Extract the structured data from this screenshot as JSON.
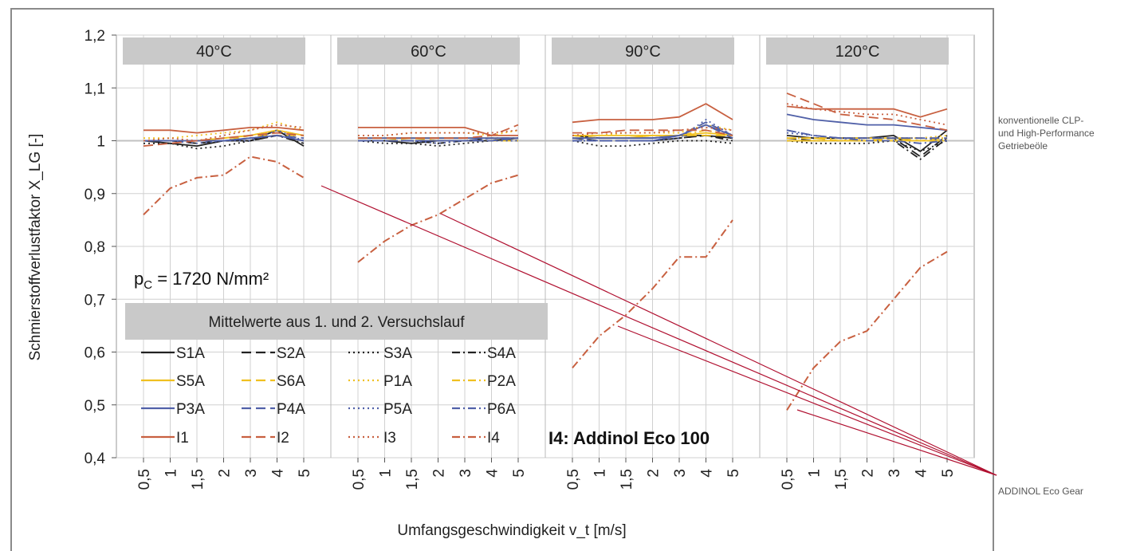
{
  "annotations": {
    "top": [
      "konventionelle CLP-",
      "und High-Performance",
      "Getriebeöle"
    ],
    "bottom": "ADDINOL Eco Gear"
  },
  "colors": {
    "dark": "#222222",
    "yellow": "#f0c020",
    "blue": "#5060a8",
    "red": "#c86040",
    "pointer": "#b01030",
    "panel_header": "#c9c9c9",
    "grid": "#d0d0d0"
  },
  "chart_data": {
    "type": "line",
    "ylabel": "Schmierstoffverlustfaktor X_LG [-]",
    "xlabel": "Umfangsgeschwindigkeit v_t [m/s]",
    "ylim": [
      0.4,
      1.2
    ],
    "yticks": [
      "0,4",
      "0,5",
      "0,6",
      "0,7",
      "0,8",
      "0,9",
      "1",
      "1,1",
      "1,2"
    ],
    "ytick_values": [
      0.4,
      0.5,
      0.6,
      0.7,
      0.8,
      0.9,
      1.0,
      1.1,
      1.2
    ],
    "x": [
      0.5,
      1,
      1.5,
      2,
      3,
      4,
      5
    ],
    "xtick_labels": [
      "0,5",
      "1",
      "1,5",
      "2",
      "3",
      "4",
      "5"
    ],
    "grid": true,
    "pressure_label": "p",
    "pressure_sub": "C",
    "pressure_value": " = 1720 N/mm²",
    "legend_title": "Mittelwerte aus 1. und 2. Versuchslauf",
    "note": "I4: Addinol Eco 100",
    "legend": [
      {
        "name": "S1A",
        "color": "dark",
        "dash": "solid"
      },
      {
        "name": "S2A",
        "color": "dark",
        "dash": "dash"
      },
      {
        "name": "S3A",
        "color": "dark",
        "dash": "dot"
      },
      {
        "name": "S4A",
        "color": "dark",
        "dash": "dashdot"
      },
      {
        "name": "S5A",
        "color": "yellow",
        "dash": "solid"
      },
      {
        "name": "S6A",
        "color": "yellow",
        "dash": "dash"
      },
      {
        "name": "P1A",
        "color": "yellow",
        "dash": "dot"
      },
      {
        "name": "P2A",
        "color": "yellow",
        "dash": "dashdot"
      },
      {
        "name": "P3A",
        "color": "blue",
        "dash": "solid"
      },
      {
        "name": "P4A",
        "color": "blue",
        "dash": "dash"
      },
      {
        "name": "P5A",
        "color": "blue",
        "dash": "dot"
      },
      {
        "name": "P6A",
        "color": "blue",
        "dash": "dashdot"
      },
      {
        "name": "I1",
        "color": "red",
        "dash": "solid"
      },
      {
        "name": "I2",
        "color": "red",
        "dash": "dash"
      },
      {
        "name": "I3",
        "color": "red",
        "dash": "dot"
      },
      {
        "name": "I4",
        "color": "red",
        "dash": "dashdot"
      }
    ],
    "panels": [
      {
        "title": "40°C",
        "series": [
          {
            "name": "S1A",
            "values": [
              1.0,
              0.995,
              0.99,
              1.0,
              1.0,
              1.02,
              0.99
            ]
          },
          {
            "name": "S2A",
            "values": [
              1.0,
              1.0,
              0.995,
              1.0,
              1.0,
              1.01,
              1.0
            ]
          },
          {
            "name": "S3A",
            "values": [
              0.995,
              0.995,
              0.985,
              0.99,
              1.0,
              1.01,
              1.0
            ]
          },
          {
            "name": "S4A",
            "values": [
              1.0,
              1.0,
              1.0,
              1.0,
              1.0,
              1.01,
              0.995
            ]
          },
          {
            "name": "S5A",
            "values": [
              1.0,
              1.0,
              1.0,
              1.005,
              1.01,
              1.02,
              1.01
            ]
          },
          {
            "name": "S6A",
            "values": [
              1.0,
              1.0,
              1.0,
              1.0,
              1.01,
              1.01,
              1.01
            ]
          },
          {
            "name": "P1A",
            "values": [
              1.005,
              1.005,
              1.01,
              1.015,
              1.02,
              1.035,
              1.02
            ]
          },
          {
            "name": "P2A",
            "values": [
              1.0,
              1.0,
              1.0,
              1.005,
              1.01,
              1.02,
              1.01
            ]
          },
          {
            "name": "P3A",
            "values": [
              1.0,
              1.0,
              1.0,
              1.0,
              1.005,
              1.01,
              1.0
            ]
          },
          {
            "name": "P4A",
            "values": [
              1.0,
              1.0,
              1.0,
              1.0,
              1.005,
              1.01,
              1.005
            ]
          },
          {
            "name": "P5A",
            "values": [
              1.0,
              1.0,
              0.995,
              1.0,
              1.0,
              1.02,
              1.0
            ]
          },
          {
            "name": "P6A",
            "values": [
              1.0,
              1.0,
              1.0,
              1.0,
              1.005,
              1.01,
              1.0
            ]
          },
          {
            "name": "I1",
            "values": [
              1.02,
              1.02,
              1.015,
              1.02,
              1.025,
              1.025,
              1.02
            ]
          },
          {
            "name": "I2",
            "values": [
              0.99,
              0.995,
              1.0,
              1.005,
              1.01,
              1.015,
              1.01
            ]
          },
          {
            "name": "I3",
            "values": [
              1.0,
              1.005,
              1.0,
              1.01,
              1.02,
              1.03,
              1.025
            ]
          },
          {
            "name": "I4",
            "values": [
              0.86,
              0.91,
              0.93,
              0.935,
              0.97,
              0.96,
              0.93
            ]
          }
        ]
      },
      {
        "title": "60°C",
        "series": [
          {
            "name": "S1A",
            "values": [
              1.0,
              1.0,
              0.995,
              1.0,
              1.0,
              1.0,
              1.005
            ]
          },
          {
            "name": "S2A",
            "values": [
              1.0,
              1.0,
              1.0,
              1.0,
              1.0,
              1.005,
              1.0
            ]
          },
          {
            "name": "S3A",
            "values": [
              1.0,
              0.995,
              0.995,
              0.99,
              0.995,
              1.0,
              1.0
            ]
          },
          {
            "name": "S4A",
            "values": [
              1.0,
              1.0,
              1.0,
              0.995,
              1.0,
              1.0,
              1.005
            ]
          },
          {
            "name": "S5A",
            "values": [
              1.005,
              1.005,
              1.005,
              1.005,
              1.005,
              1.005,
              1.005
            ]
          },
          {
            "name": "S6A",
            "values": [
              1.0,
              1.0,
              1.005,
              1.0,
              1.0,
              1.0,
              1.0
            ]
          },
          {
            "name": "P1A",
            "values": [
              1.01,
              1.01,
              1.015,
              1.015,
              1.015,
              1.01,
              1.02
            ]
          },
          {
            "name": "P2A",
            "values": [
              1.005,
              1.005,
              1.005,
              1.005,
              1.005,
              1.005,
              1.005
            ]
          },
          {
            "name": "P3A",
            "values": [
              1.005,
              1.005,
              1.005,
              1.005,
              1.005,
              1.005,
              1.005
            ]
          },
          {
            "name": "P4A",
            "values": [
              1.0,
              1.0,
              1.0,
              1.0,
              1.0,
              1.0,
              1.005
            ]
          },
          {
            "name": "P5A",
            "values": [
              1.0,
              1.0,
              1.0,
              0.995,
              1.0,
              1.0,
              1.0
            ]
          },
          {
            "name": "P6A",
            "values": [
              1.0,
              1.0,
              1.0,
              1.0,
              1.0,
              1.005,
              1.005
            ]
          },
          {
            "name": "I1",
            "values": [
              1.025,
              1.025,
              1.025,
              1.025,
              1.025,
              1.01,
              1.01
            ]
          },
          {
            "name": "I2",
            "values": [
              1.005,
              1.005,
              1.005,
              1.005,
              1.005,
              1.01,
              1.03
            ]
          },
          {
            "name": "I3",
            "values": [
              1.01,
              1.01,
              1.015,
              1.015,
              1.015,
              1.015,
              1.02
            ]
          },
          {
            "name": "I4",
            "values": [
              0.77,
              0.81,
              0.84,
              0.86,
              0.89,
              0.92,
              0.935
            ]
          }
        ]
      },
      {
        "title": "90°C",
        "series": [
          {
            "name": "S1A",
            "values": [
              1.01,
              1.005,
              1.005,
              1.005,
              1.01,
              1.01,
              1.005
            ]
          },
          {
            "name": "S2A",
            "values": [
              1.005,
              1.0,
              1.0,
              1.0,
              1.005,
              1.01,
              1.005
            ]
          },
          {
            "name": "S3A",
            "values": [
              1.0,
              0.99,
              0.99,
              0.995,
              1.0,
              1.0,
              0.995
            ]
          },
          {
            "name": "S4A",
            "values": [
              1.0,
              1.0,
              1.0,
              1.0,
              1.005,
              1.01,
              1.0
            ]
          },
          {
            "name": "S5A",
            "values": [
              1.01,
              1.01,
              1.01,
              1.01,
              1.01,
              1.015,
              1.01
            ]
          },
          {
            "name": "S6A",
            "values": [
              1.005,
              1.005,
              1.005,
              1.01,
              1.01,
              1.01,
              1.01
            ]
          },
          {
            "name": "P1A",
            "values": [
              1.01,
              1.01,
              1.015,
              1.015,
              1.015,
              1.03,
              1.02
            ]
          },
          {
            "name": "P2A",
            "values": [
              1.01,
              1.005,
              1.005,
              1.01,
              1.01,
              1.02,
              1.01
            ]
          },
          {
            "name": "P3A",
            "values": [
              1.005,
              1.005,
              1.005,
              1.005,
              1.01,
              1.03,
              1.01
            ]
          },
          {
            "name": "P4A",
            "values": [
              1.0,
              1.0,
              1.0,
              1.0,
              1.01,
              1.035,
              1.01
            ]
          },
          {
            "name": "P5A",
            "values": [
              1.005,
              1.0,
              1.0,
              1.0,
              1.005,
              1.04,
              1.01
            ]
          },
          {
            "name": "P6A",
            "values": [
              1.0,
              1.0,
              1.0,
              1.0,
              1.01,
              1.03,
              1.005
            ]
          },
          {
            "name": "I1",
            "values": [
              1.035,
              1.04,
              1.04,
              1.04,
              1.045,
              1.07,
              1.04
            ]
          },
          {
            "name": "I2",
            "values": [
              1.015,
              1.015,
              1.02,
              1.02,
              1.02,
              1.02,
              1.01
            ]
          },
          {
            "name": "I3",
            "values": [
              1.01,
              1.015,
              1.015,
              1.015,
              1.02,
              1.025,
              1.02
            ]
          },
          {
            "name": "I4",
            "values": [
              0.57,
              0.63,
              0.67,
              0.72,
              0.78,
              0.78,
              0.85
            ]
          }
        ]
      },
      {
        "title": "120°C",
        "series": [
          {
            "name": "S1A",
            "values": [
              1.01,
              1.005,
              1.005,
              1.005,
              1.01,
              0.98,
              1.02
            ]
          },
          {
            "name": "S2A",
            "values": [
              1.005,
              1.0,
              1.0,
              1.0,
              1.005,
              0.97,
              1.01
            ]
          },
          {
            "name": "S3A",
            "values": [
              1.0,
              0.995,
              0.995,
              0.995,
              1.0,
              0.98,
              1.0
            ]
          },
          {
            "name": "S4A",
            "values": [
              1.0,
              1.0,
              1.0,
              1.0,
              1.0,
              0.965,
              1.005
            ]
          },
          {
            "name": "S5A",
            "values": [
              1.0,
              1.0,
              1.0,
              1.0,
              1.0,
              1.0,
              1.0
            ]
          },
          {
            "name": "S6A",
            "values": [
              1.005,
              1.005,
              1.0,
              1.0,
              1.005,
              1.0,
              1.005
            ]
          },
          {
            "name": "P1A",
            "values": [
              1.0,
              1.0,
              1.0,
              1.005,
              1.005,
              1.005,
              1.01
            ]
          },
          {
            "name": "P2A",
            "values": [
              1.005,
              1.005,
              1.005,
              1.005,
              1.005,
              1.005,
              1.005
            ]
          },
          {
            "name": "P3A",
            "values": [
              1.05,
              1.04,
              1.035,
              1.03,
              1.03,
              1.025,
              1.02
            ]
          },
          {
            "name": "P4A",
            "values": [
              1.02,
              1.01,
              1.005,
              1.005,
              1.005,
              1.005,
              1.005
            ]
          },
          {
            "name": "P5A",
            "values": [
              1.015,
              1.01,
              1.005,
              1.005,
              1.005,
              1.005,
              1.0
            ]
          },
          {
            "name": "P6A",
            "values": [
              1.02,
              1.01,
              1.005,
              1.0,
              1.0,
              0.995,
              1.0
            ]
          },
          {
            "name": "I1",
            "values": [
              1.065,
              1.06,
              1.06,
              1.06,
              1.06,
              1.045,
              1.06
            ]
          },
          {
            "name": "I2",
            "values": [
              1.09,
              1.07,
              1.05,
              1.045,
              1.04,
              1.03,
              1.02
            ]
          },
          {
            "name": "I3",
            "values": [
              1.07,
              1.06,
              1.055,
              1.05,
              1.05,
              1.04,
              1.03
            ]
          },
          {
            "name": "I4",
            "values": [
              0.49,
              0.57,
              0.62,
              0.64,
              0.7,
              0.76,
              0.79
            ]
          }
        ]
      }
    ]
  }
}
